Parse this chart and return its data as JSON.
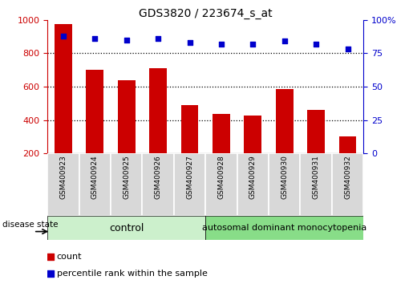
{
  "title": "GDS3820 / 223674_s_at",
  "samples": [
    "GSM400923",
    "GSM400924",
    "GSM400925",
    "GSM400926",
    "GSM400927",
    "GSM400928",
    "GSM400929",
    "GSM400930",
    "GSM400931",
    "GSM400932"
  ],
  "counts": [
    975,
    700,
    640,
    710,
    490,
    435,
    425,
    585,
    460,
    300
  ],
  "percentile_ranks": [
    88,
    86,
    85,
    86,
    83,
    82,
    82,
    84,
    82,
    78
  ],
  "bar_color": "#cc0000",
  "dot_color": "#0000cc",
  "left_ylim": [
    200,
    1000
  ],
  "right_ylim": [
    0,
    100
  ],
  "left_yticks": [
    200,
    400,
    600,
    800,
    1000
  ],
  "right_yticks": [
    0,
    25,
    50,
    75,
    100
  ],
  "right_yticklabels": [
    "0",
    "25",
    "50",
    "75",
    "100%"
  ],
  "grid_values": [
    400,
    600,
    800
  ],
  "control_count": 5,
  "disease_label": "autosomal dominant monocytopenia",
  "control_label": "control",
  "disease_state_label": "disease state",
  "legend_count_label": "count",
  "legend_percentile_label": "percentile rank within the sample",
  "control_bg": "#ccf0cc",
  "disease_bg": "#88dd88",
  "xlabel_bg": "#d8d8d8",
  "xlabel_border": "#aaaaaa"
}
